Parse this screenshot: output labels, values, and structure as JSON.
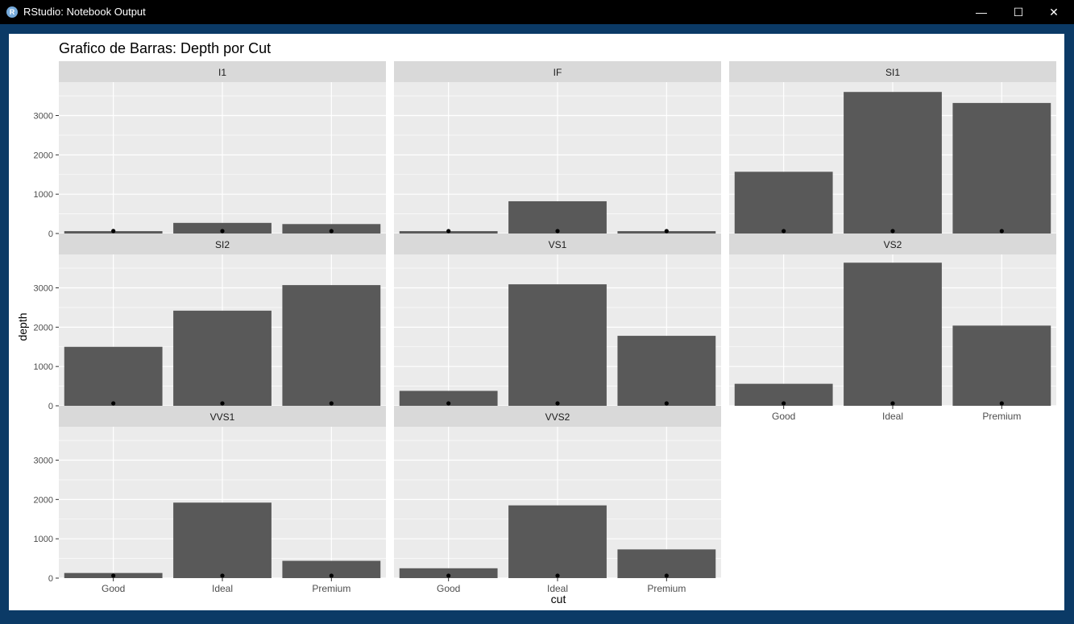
{
  "window": {
    "title": "RStudio: Notebook Output",
    "icon": "rstudio-icon",
    "controls": {
      "minimize": "—",
      "maximize": "☐",
      "close": "✕"
    }
  },
  "colors": {
    "bar": "#595959",
    "panel_bg": "#ebebeb",
    "strip_bg": "#d9d9d9",
    "grid": "#ffffff",
    "point": "#000000",
    "text": "#4d4d4d",
    "title": "#000000"
  },
  "chart_data": {
    "type": "bar",
    "title": "Grafico de Barras: Depth por Cut",
    "xlabel": "cut",
    "ylabel": "depth",
    "categories": [
      "Good",
      "Ideal",
      "Premium"
    ],
    "ylim": [
      0,
      3850
    ],
    "yticks": [
      0,
      1000,
      2000,
      3000
    ],
    "grid": true,
    "legend": "none",
    "facet_cols": 3,
    "facets": [
      {
        "name": "I1",
        "values": [
          60,
          270,
          240
        ],
        "points": [
          64,
          62,
          61
        ]
      },
      {
        "name": "IF",
        "values": [
          60,
          820,
          60
        ],
        "points": [
          62,
          62,
          61
        ]
      },
      {
        "name": "SI1",
        "values": [
          1570,
          3600,
          3320
        ],
        "points": [
          62,
          62,
          61
        ]
      },
      {
        "name": "SI2",
        "values": [
          1500,
          2420,
          3070
        ],
        "points": [
          62,
          62,
          61
        ]
      },
      {
        "name": "VS1",
        "values": [
          380,
          3090,
          1780
        ],
        "points": [
          62,
          62,
          61
        ]
      },
      {
        "name": "VS2",
        "values": [
          560,
          3640,
          2040
        ],
        "points": [
          62,
          62,
          61
        ]
      },
      {
        "name": "VVS1",
        "values": [
          130,
          1920,
          440
        ],
        "points": [
          62,
          62,
          61
        ]
      },
      {
        "name": "VVS2",
        "values": [
          250,
          1850,
          730
        ],
        "points": [
          62,
          62,
          61
        ]
      }
    ]
  }
}
